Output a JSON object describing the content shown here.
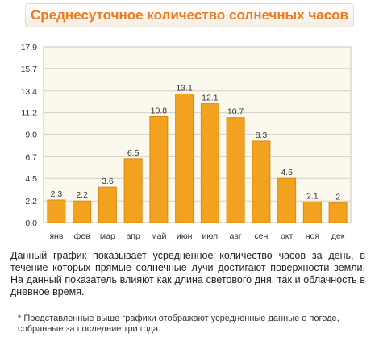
{
  "header": {
    "title": "Среднесуточное количество солнечных часов"
  },
  "chart_data": {
    "type": "bar",
    "categories": [
      "янв",
      "фев",
      "мар",
      "апр",
      "май",
      "июн",
      "июл",
      "авг",
      "сен",
      "окт",
      "ноя",
      "дек"
    ],
    "values": [
      2.3,
      2.2,
      3.6,
      6.5,
      10.8,
      13.1,
      12.1,
      10.7,
      8.3,
      4.5,
      2.1,
      2
    ],
    "value_labels": [
      "2.3",
      "2.2",
      "3.6",
      "6.5",
      "10.8",
      "13.1",
      "12.1",
      "10.7",
      "8.3",
      "4.5",
      "2.1",
      "2"
    ],
    "y_ticks": [
      "0.0",
      "2.2",
      "4.5",
      "6.7",
      "9.0",
      "11.2",
      "13.4",
      "15.7",
      "17.9"
    ],
    "ylim": [
      0,
      17.9
    ],
    "grid": true,
    "colors": {
      "bar": "#f2a21f",
      "bar_edge": "#d98a10",
      "plot_bg": "#fbf8ee",
      "grid": "#d5d0c3"
    }
  },
  "description": "Данный график показывает усредненное количество часов за день, в течение которых прямые солнечные лучи достигают поверхности земли. На данный показатель влияют как длина светового дня, так и облачность в дневное время.",
  "footnote": "* Представленные выше графики отображают усредненные данные о погоде, собранные за последние три года."
}
